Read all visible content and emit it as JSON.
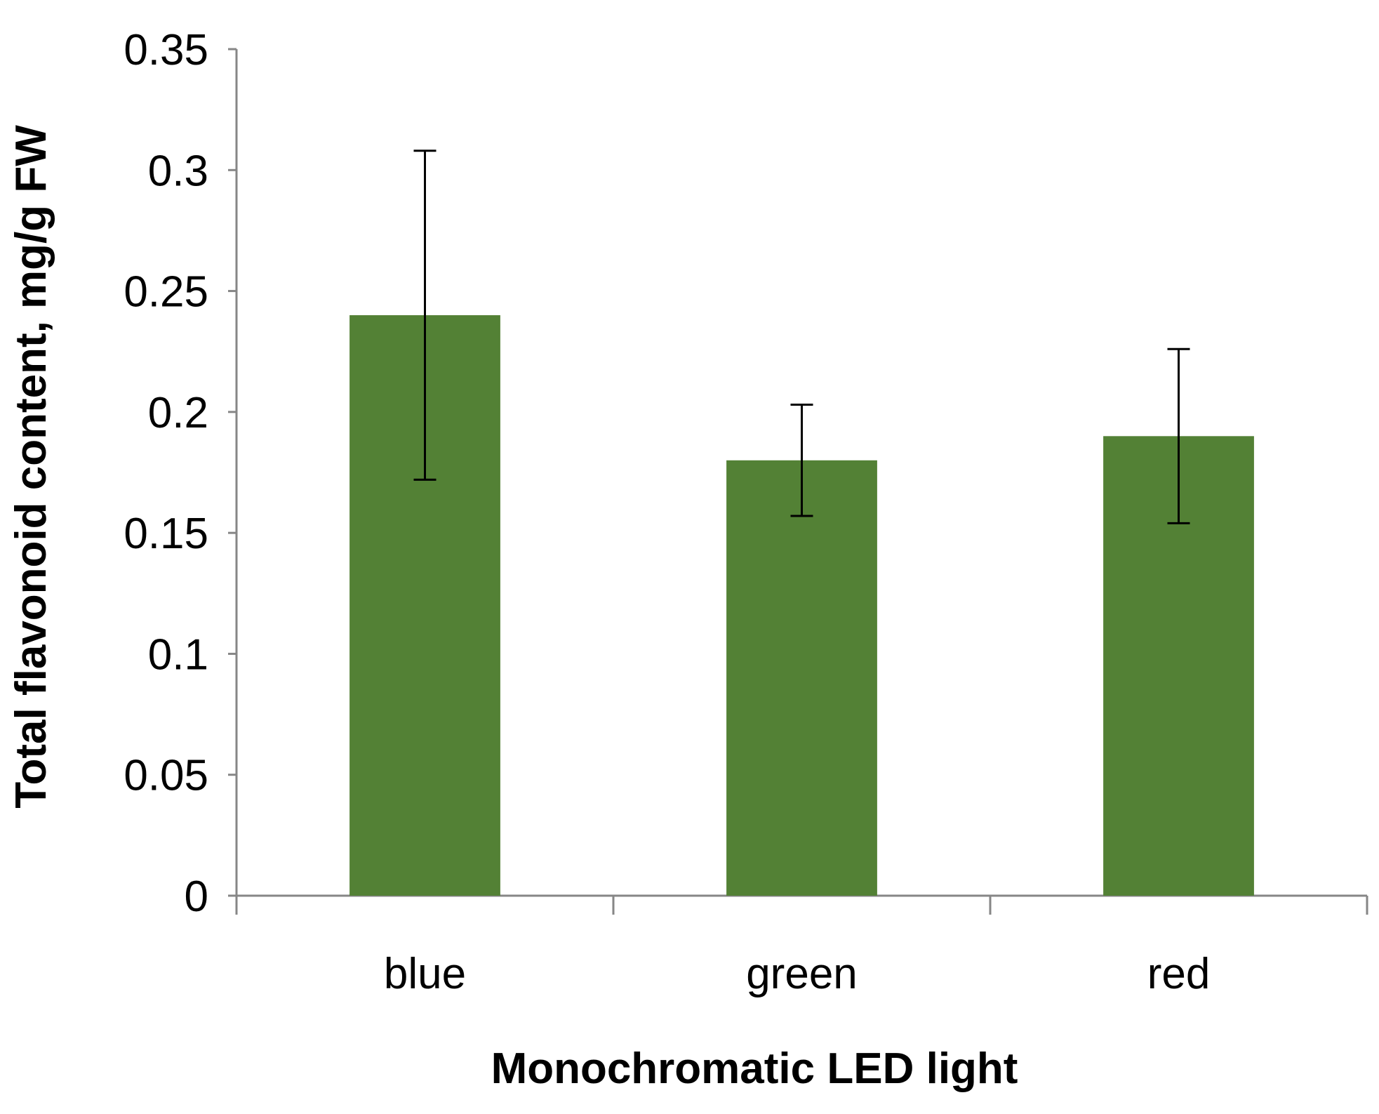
{
  "chart_data": {
    "type": "bar",
    "title": "",
    "xlabel": "Monochromatic LED light",
    "ylabel": "Total flavonoid content, mg/g FW",
    "categories": [
      "blue",
      "green",
      "red"
    ],
    "series": [
      {
        "name": "Total flavonoid content",
        "values": [
          0.24,
          0.18,
          0.19
        ],
        "error_low": [
          0.172,
          0.157,
          0.154
        ],
        "error_high": [
          0.308,
          0.203,
          0.226
        ],
        "color": "#538135"
      }
    ],
    "ylim": [
      0,
      0.35
    ],
    "yticks": [
      0,
      0.05,
      0.1,
      0.15,
      0.2,
      0.25,
      0.3,
      0.35
    ],
    "ytick_labels": [
      "0",
      "0.05",
      "0.1",
      "0.15",
      "0.2",
      "0.25",
      "0.3",
      "0.35"
    ],
    "grid": false,
    "legend": "none",
    "axis_color": "#868686",
    "error_bar_color": "#000000"
  }
}
